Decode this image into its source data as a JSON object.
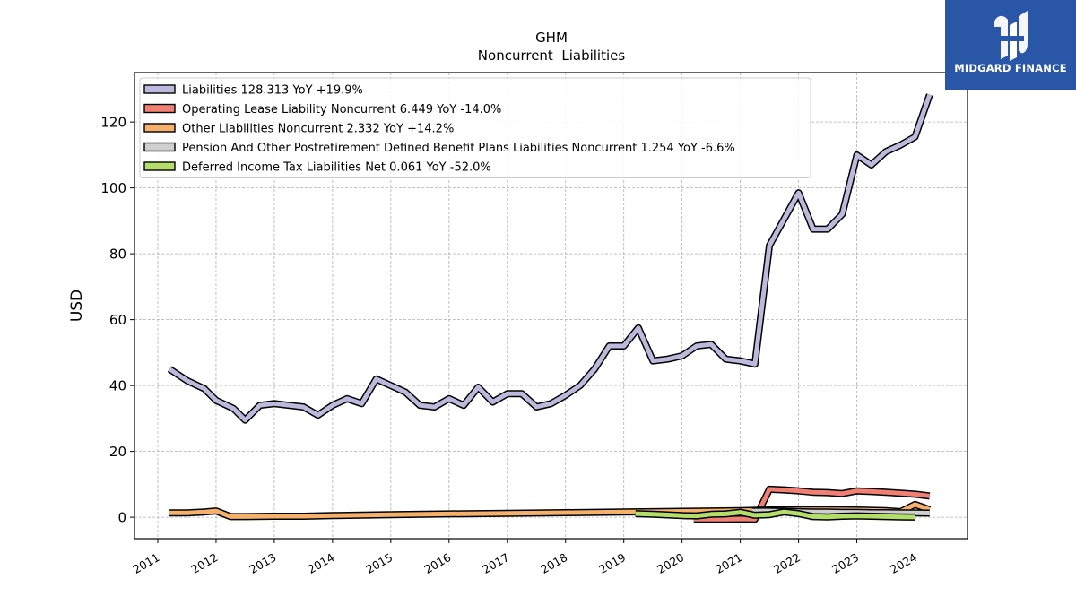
{
  "chart_data": {
    "type": "area",
    "title": "GHM",
    "subtitle": "Noncurrent  Liabilities",
    "ylabel": "USD",
    "xlabel": "",
    "xlim": [
      2010.6,
      2024.9
    ],
    "ylim": [
      -6.5,
      135
    ],
    "yticks": [
      0,
      20,
      40,
      60,
      80,
      100,
      120
    ],
    "xticks": [
      2011,
      2012,
      2013,
      2014,
      2015,
      2016,
      2017,
      2018,
      2019,
      2020,
      2021,
      2022,
      2023,
      2024
    ],
    "grid": true,
    "legend_position": "top-left",
    "series": [
      {
        "name": "Liabilities",
        "legend": "Liabilities  128.313 YoY +19.9%",
        "color": "#bcb9dc",
        "x": [
          2011.2,
          2011.5,
          2011.8,
          2012.0,
          2012.3,
          2012.5,
          2012.75,
          2013.0,
          2013.25,
          2013.5,
          2013.75,
          2014.0,
          2014.25,
          2014.5,
          2014.75,
          2015.0,
          2015.25,
          2015.5,
          2015.75,
          2016.0,
          2016.25,
          2016.5,
          2016.75,
          2017.0,
          2017.25,
          2017.5,
          2017.75,
          2018.0,
          2018.25,
          2018.5,
          2018.75,
          2019.0,
          2019.25,
          2019.5,
          2019.75,
          2020.0,
          2020.25,
          2020.5,
          2020.75,
          2021.0,
          2021.25,
          2021.5,
          2021.75,
          2022.0,
          2022.25,
          2022.5,
          2022.75,
          2023.0,
          2023.25,
          2023.5,
          2023.75,
          2024.0,
          2024.25
        ],
        "values": [
          45,
          41.5,
          39,
          35.5,
          33,
          29.5,
          34,
          34.5,
          34,
          33.5,
          31,
          34,
          36,
          34.5,
          42,
          40,
          38,
          34,
          33.5,
          36,
          34,
          39.5,
          35,
          37.5,
          37.5,
          33.5,
          34.5,
          37,
          40,
          45,
          52,
          52,
          57.5,
          47.5,
          48,
          49,
          52,
          52.5,
          48,
          47.5,
          46.5,
          82.5,
          90.5,
          98.5,
          87.5,
          87.5,
          92,
          110,
          107,
          111,
          113,
          115.5,
          128.3
        ]
      },
      {
        "name": "Operating Lease Liability Noncurrent",
        "legend": "Operating Lease Liability Noncurrent  6.449 YoY -14.0%",
        "color": "#f07f74",
        "x": [
          2020.2,
          2020.5,
          2020.75,
          2021.0,
          2021.25,
          2021.5,
          2021.75,
          2022.0,
          2022.25,
          2022.5,
          2022.75,
          2023.0,
          2023.25,
          2023.5,
          2023.75,
          2024.0,
          2024.25
        ],
        "values": [
          -0.6,
          -0.6,
          -0.6,
          -0.5,
          -0.6,
          8.5,
          8.3,
          8.0,
          7.6,
          7.5,
          7.2,
          8.0,
          7.8,
          7.6,
          7.3,
          7.0,
          6.45
        ]
      },
      {
        "name": "Other Liabilities Noncurrent",
        "legend": "Other Liabilities Noncurrent  2.332 YoY +14.2%",
        "color": "#f5b06b",
        "x": [
          2011.2,
          2011.5,
          2011.8,
          2012.0,
          2012.25,
          2012.5,
          2013.0,
          2013.5,
          2014.0,
          2015.0,
          2016.0,
          2017.0,
          2018.0,
          2019.0,
          2020.0,
          2021.0,
          2021.5,
          2022.0,
          2022.5,
          2023.0,
          2023.5,
          2023.75,
          2024.0,
          2024.25
        ],
        "values": [
          1.3,
          1.3,
          1.6,
          1.9,
          0.2,
          0.2,
          0.3,
          0.3,
          0.5,
          0.8,
          1.0,
          1.2,
          1.4,
          1.6,
          1.8,
          2.0,
          2.2,
          2.3,
          2.3,
          2.2,
          2.0,
          1.7,
          3.9,
          2.33
        ]
      },
      {
        "name": "Pension And Other Postretirement Defined Benefit Plans Liabilities Noncurrent",
        "legend": "Pension And Other Postretirement Defined Benefit Plans Liabilities Noncurrent  1.254 YoY -6.6%",
        "color": "#cfcfcf",
        "x": [
          2021.2,
          2021.5,
          2021.75,
          2022.0,
          2022.25,
          2022.5,
          2022.75,
          2023.0,
          2023.25,
          2023.5,
          2023.75,
          2024.0,
          2024.25
        ],
        "values": [
          1.9,
          1.9,
          1.8,
          1.7,
          1.6,
          1.6,
          1.5,
          1.5,
          1.4,
          1.4,
          1.3,
          1.3,
          1.25
        ]
      },
      {
        "name": "Deferred Income Tax Liabilities Net",
        "legend": "Deferred Income Tax Liabilities Net  0.061 YoY -52.0%",
        "color": "#b3de69",
        "x": [
          2019.2,
          2019.5,
          2019.75,
          2020.0,
          2020.25,
          2020.5,
          2020.75,
          2021.0,
          2021.25,
          2021.5,
          2021.75,
          2022.0,
          2022.25,
          2022.5,
          2022.75,
          2023.0,
          2023.25,
          2023.5,
          2023.75,
          2024.0
        ],
        "values": [
          1.1,
          0.9,
          0.7,
          0.5,
          0.4,
          0.9,
          1.0,
          1.5,
          0.6,
          0.8,
          1.6,
          1.1,
          0.2,
          0.1,
          0.3,
          0.4,
          0.3,
          0.2,
          0.1,
          0.06
        ]
      }
    ]
  },
  "logo": {
    "text": "MIDGARD FINANCE",
    "icon": "midgard-logo-icon",
    "background": "#2a56a8"
  }
}
